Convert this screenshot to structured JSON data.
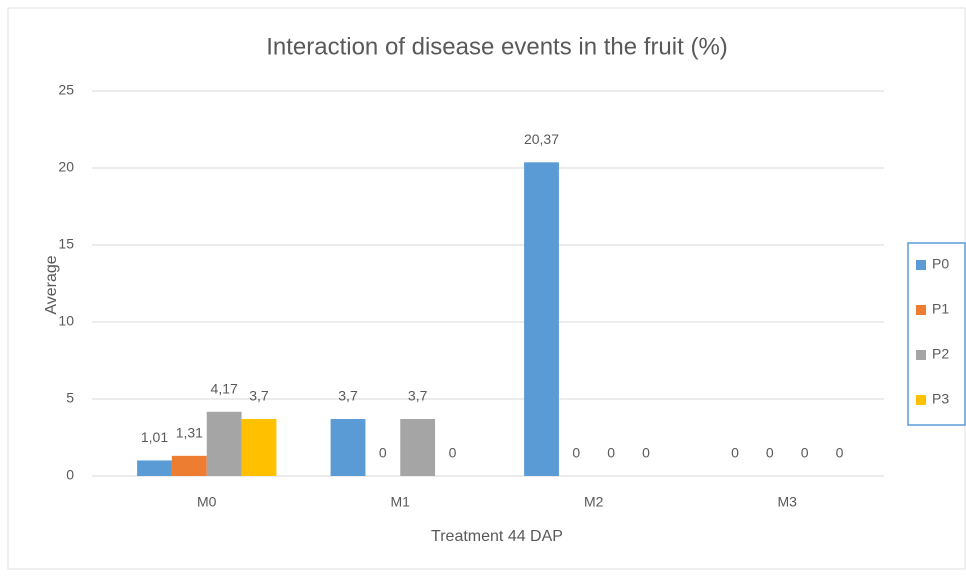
{
  "chart_data": {
    "type": "bar",
    "title": "Interaction of disease events in the fruit (%)",
    "x_label": "Treatment 44 DAP",
    "y_label": "Average",
    "categories": [
      "M0",
      "M1",
      "M2",
      "M3"
    ],
    "series": [
      {
        "name": "P0",
        "color": "#5b9bd5",
        "values": [
          1.01,
          3.7,
          20.37,
          0
        ],
        "value_labels": [
          "1,01",
          "3,7",
          "20,37",
          "0"
        ]
      },
      {
        "name": "P1",
        "color": "#ed7d31",
        "values": [
          1.31,
          0,
          0,
          0
        ],
        "value_labels": [
          "1,31",
          "0",
          "0",
          "0"
        ]
      },
      {
        "name": "P2",
        "color": "#a5a5a5",
        "values": [
          4.17,
          3.7,
          0,
          0
        ],
        "value_labels": [
          "4,17",
          "3,7",
          "0",
          "0"
        ]
      },
      {
        "name": "P3",
        "color": "#ffc000",
        "values": [
          3.7,
          0,
          0,
          0
        ],
        "value_labels": [
          "3,7",
          "0",
          "0",
          "0"
        ]
      }
    ],
    "ylim": [
      0,
      25
    ],
    "yticks": [
      0,
      5,
      10,
      15,
      20,
      25
    ],
    "grid": true,
    "legend": "right"
  }
}
